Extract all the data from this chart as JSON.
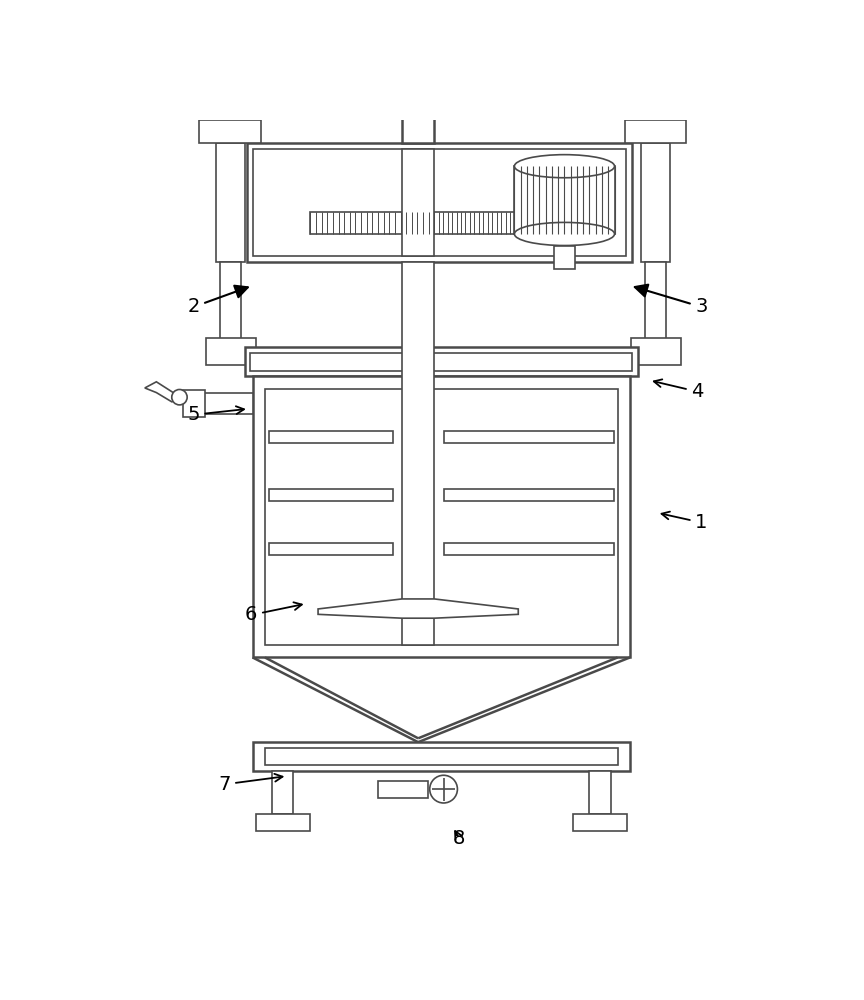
{
  "bg_color": "#ffffff",
  "line_color": "#4a4a4a",
  "lw_main": 1.8,
  "lw_thin": 1.2,
  "fig_width": 8.64,
  "fig_height": 10.0
}
